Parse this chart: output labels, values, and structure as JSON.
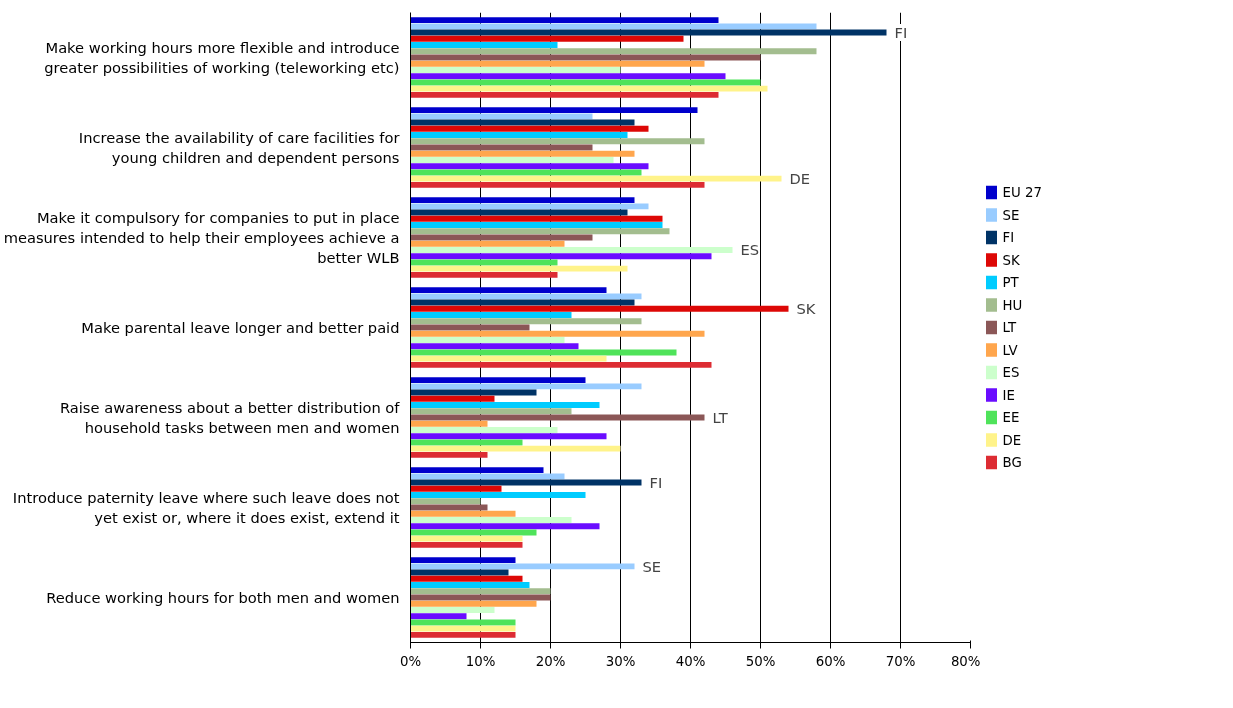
{
  "chart_data": {
    "type": "bar",
    "orientation": "horizontal",
    "categories": [
      "Make working hours more flexible and introduce greater possibilities of working (teleworking etc)",
      "Increase the availability of care facilities for young children and dependent persons",
      "Make it compulsory for companies to put in place measures intended to help their employees achieve a better WLB",
      "Make parental leave longer and better paid",
      "Raise awareness about a better distribution of household tasks between men and women",
      "Introduce paternity leave where such leave does not yet exist or, where it does exist, extend it",
      "Reduce working hours for both men and women"
    ],
    "series": [
      {
        "name": "EU 27",
        "color": "#0000cc",
        "values": [
          44,
          41,
          32,
          28,
          25,
          19,
          15
        ]
      },
      {
        "name": "SE",
        "color": "#99ccff",
        "values": [
          58,
          26,
          34,
          33,
          33,
          22,
          32
        ]
      },
      {
        "name": "FI",
        "color": "#003366",
        "values": [
          68,
          32,
          31,
          32,
          18,
          33,
          14
        ]
      },
      {
        "name": "SK",
        "color": "#dd0806",
        "values": [
          39,
          34,
          36,
          54,
          12,
          13,
          16
        ]
      },
      {
        "name": "PT",
        "color": "#00ccff",
        "values": [
          21,
          31,
          36,
          23,
          27,
          25,
          17
        ]
      },
      {
        "name": "HU",
        "color": "#a3bd8f",
        "values": [
          58,
          42,
          37,
          33,
          23,
          10,
          20
        ]
      },
      {
        "name": "LT",
        "color": "#8b5757",
        "values": [
          50,
          26,
          26,
          17,
          42,
          11,
          20
        ]
      },
      {
        "name": "LV",
        "color": "#ffa64d",
        "values": [
          42,
          32,
          22,
          42,
          11,
          15,
          18
        ]
      },
      {
        "name": "ES",
        "color": "#ccffcc",
        "values": [
          30,
          29,
          46,
          22,
          21,
          23,
          12
        ]
      },
      {
        "name": "IE",
        "color": "#6a0dff",
        "values": [
          45,
          34,
          43,
          24,
          28,
          27,
          8
        ]
      },
      {
        "name": "EE",
        "color": "#4fe35a",
        "values": [
          50,
          33,
          21,
          38,
          16,
          18,
          15
        ]
      },
      {
        "name": "DE",
        "color": "#fff38a",
        "values": [
          51,
          53,
          31,
          28,
          30,
          16,
          15
        ]
      },
      {
        "name": "BG",
        "color": "#dd2c33",
        "values": [
          44,
          42,
          21,
          43,
          11,
          16,
          15
        ]
      }
    ],
    "xlim": [
      0,
      80
    ],
    "xticks": [
      {
        "value": 0,
        "label": "0%"
      },
      {
        "value": 10,
        "label": "10%"
      },
      {
        "value": 20,
        "label": "20%"
      },
      {
        "value": 30,
        "label": "30%"
      },
      {
        "value": 40,
        "label": "40%"
      },
      {
        "value": 50,
        "label": "50%"
      },
      {
        "value": 60,
        "label": "60%"
      },
      {
        "value": 70,
        "label": "70%"
      },
      {
        "value": 80,
        "label": "80%"
      }
    ],
    "grid": "x",
    "legend": "right",
    "annotations": [
      "FI",
      "DE",
      "ES",
      "SK",
      "LT",
      "FI",
      "SE"
    ]
  }
}
